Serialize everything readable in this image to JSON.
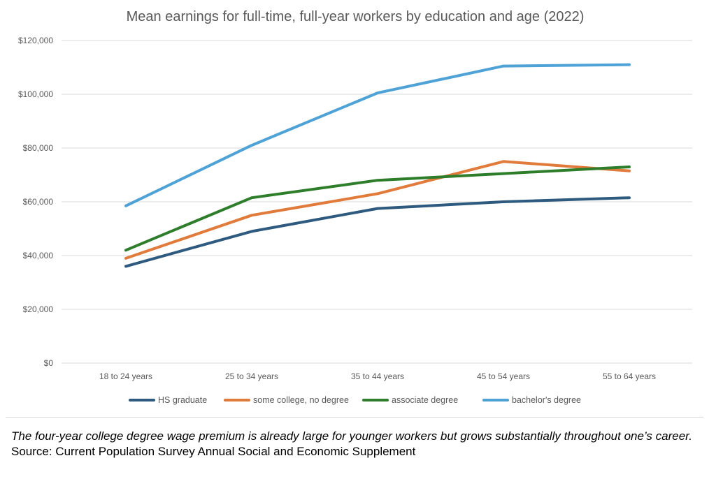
{
  "chart_data": {
    "type": "line",
    "title": "Mean earnings for full-time, full-year workers by education and age (2022)",
    "categories": [
      "18 to 24 years",
      "25 to 34 years",
      "35 to 44 years",
      "45 to 54 years",
      "55 to 64 years"
    ],
    "ylim": [
      0,
      120000
    ],
    "y_ticks": [
      "$0",
      "$20,000",
      "$40,000",
      "$60,000",
      "$80,000",
      "$100,000",
      "$120,000"
    ],
    "grid": true,
    "legend_position": "bottom",
    "series": [
      {
        "name": "HS graduate",
        "color": "#2e5a7f",
        "values": [
          36000,
          49000,
          57500,
          60000,
          61500
        ]
      },
      {
        "name": "some college, no degree",
        "color": "#e07b3c",
        "values": [
          39000,
          55000,
          63000,
          75000,
          71500
        ]
      },
      {
        "name": "associate degree",
        "color": "#2e7d2b",
        "values": [
          42000,
          61500,
          68000,
          70500,
          73000
        ]
      },
      {
        "name": "bachelor's degree",
        "color": "#4ea2d6",
        "values": [
          58500,
          81000,
          100500,
          110500,
          111000
        ]
      }
    ]
  },
  "caption": {
    "note": "The four-year college degree wage premium is already large for younger workers but grows substantially throughout one’s career.",
    "source": "Source: Current Population Survey Annual Social and Economic Supplement"
  }
}
